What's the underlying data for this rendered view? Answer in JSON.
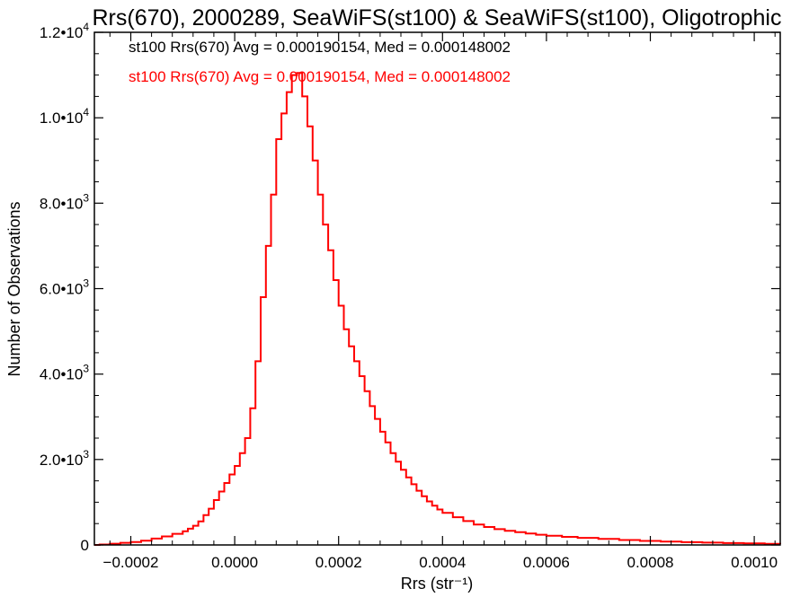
{
  "chart_data": {
    "type": "histogram",
    "title": "Rrs(670), 2000289, SeaWiFS(st100) & SeaWiFS(st100), Oligotrophic",
    "xlabel": "Rrs (str⁻¹)",
    "ylabel": "Number of Observations",
    "xlim": [
      -0.00027,
      0.00105
    ],
    "ylim": [
      0,
      12000
    ],
    "x_ticks": [
      -0.0002,
      0.0,
      0.0002,
      0.0004,
      0.0006,
      0.0008,
      0.001
    ],
    "x_tick_labels": [
      "−0.0002",
      "0.0000",
      "0.0002",
      "0.0004",
      "0.0006",
      "0.0008",
      "0.0010"
    ],
    "y_ticks": [
      0,
      2000,
      4000,
      6000,
      8000,
      10000,
      12000
    ],
    "y_tick_labels": [
      {
        "mantissa": "0",
        "exp": ""
      },
      {
        "mantissa": "2.0•10",
        "exp": "3"
      },
      {
        "mantissa": "4.0•10",
        "exp": "3"
      },
      {
        "mantissa": "6.0•10",
        "exp": "3"
      },
      {
        "mantissa": "8.0•10",
        "exp": "3"
      },
      {
        "mantissa": "1.0•10",
        "exp": "4"
      },
      {
        "mantissa": "1.2•10",
        "exp": "4"
      }
    ],
    "annotations": [
      {
        "text": "st100 Rrs(670) Avg = 0.000190154, Med = 0.000148002",
        "color": "#000000"
      },
      {
        "text": "st100 Rrs(670) Avg = 0.000190154, Med = 0.000148002",
        "color": "#ff0000"
      }
    ],
    "series": [
      {
        "color": "#ff0000",
        "points": [
          [
            -0.00027,
            0
          ],
          [
            -0.00026,
            10
          ],
          [
            -0.00024,
            30
          ],
          [
            -0.00022,
            50
          ],
          [
            -0.0002,
            70
          ],
          [
            -0.00018,
            100
          ],
          [
            -0.00016,
            150
          ],
          [
            -0.00014,
            200
          ],
          [
            -0.00012,
            260
          ],
          [
            -0.0001,
            320
          ],
          [
            -9e-05,
            380
          ],
          [
            -8e-05,
            450
          ],
          [
            -7e-05,
            550
          ],
          [
            -6e-05,
            700
          ],
          [
            -5e-05,
            850
          ],
          [
            -4e-05,
            1050
          ],
          [
            -3e-05,
            1250
          ],
          [
            -2e-05,
            1450
          ],
          [
            -1e-05,
            1650
          ],
          [
            0.0,
            1850
          ],
          [
            1e-05,
            2150
          ],
          [
            2e-05,
            2500
          ],
          [
            3e-05,
            3200
          ],
          [
            4e-05,
            4300
          ],
          [
            5e-05,
            5800
          ],
          [
            6e-05,
            7000
          ],
          [
            7e-05,
            8200
          ],
          [
            8e-05,
            9500
          ],
          [
            9e-05,
            10100
          ],
          [
            0.0001,
            10600
          ],
          [
            0.00011,
            11000
          ],
          [
            0.00012,
            11050
          ],
          [
            0.00013,
            10500
          ],
          [
            0.00014,
            9800
          ],
          [
            0.00015,
            9000
          ],
          [
            0.00016,
            8200
          ],
          [
            0.00017,
            7500
          ],
          [
            0.00018,
            6900
          ],
          [
            0.00019,
            6200
          ],
          [
            0.0002,
            5600
          ],
          [
            0.00021,
            5050
          ],
          [
            0.00022,
            4650
          ],
          [
            0.00023,
            4300
          ],
          [
            0.00024,
            3950
          ],
          [
            0.00025,
            3600
          ],
          [
            0.00026,
            3250
          ],
          [
            0.00027,
            2950
          ],
          [
            0.00028,
            2650
          ],
          [
            0.00029,
            2400
          ],
          [
            0.0003,
            2150
          ],
          [
            0.00031,
            1950
          ],
          [
            0.00032,
            1760
          ],
          [
            0.00033,
            1580
          ],
          [
            0.00034,
            1420
          ],
          [
            0.00035,
            1270
          ],
          [
            0.00036,
            1140
          ],
          [
            0.00037,
            1020
          ],
          [
            0.00038,
            920
          ],
          [
            0.00039,
            830
          ],
          [
            0.0004,
            750
          ],
          [
            0.00042,
            650
          ],
          [
            0.00044,
            560
          ],
          [
            0.00046,
            480
          ],
          [
            0.00048,
            420
          ],
          [
            0.0005,
            370
          ],
          [
            0.00052,
            330
          ],
          [
            0.00054,
            300
          ],
          [
            0.00056,
            270
          ],
          [
            0.00058,
            240
          ],
          [
            0.0006,
            215
          ],
          [
            0.00063,
            190
          ],
          [
            0.00066,
            165
          ],
          [
            0.0007,
            140
          ],
          [
            0.00074,
            115
          ],
          [
            0.00078,
            95
          ],
          [
            0.00082,
            80
          ],
          [
            0.00086,
            65
          ],
          [
            0.0009,
            55
          ],
          [
            0.00094,
            45
          ],
          [
            0.00098,
            35
          ],
          [
            0.00102,
            25
          ],
          [
            0.00105,
            20
          ]
        ]
      }
    ]
  }
}
